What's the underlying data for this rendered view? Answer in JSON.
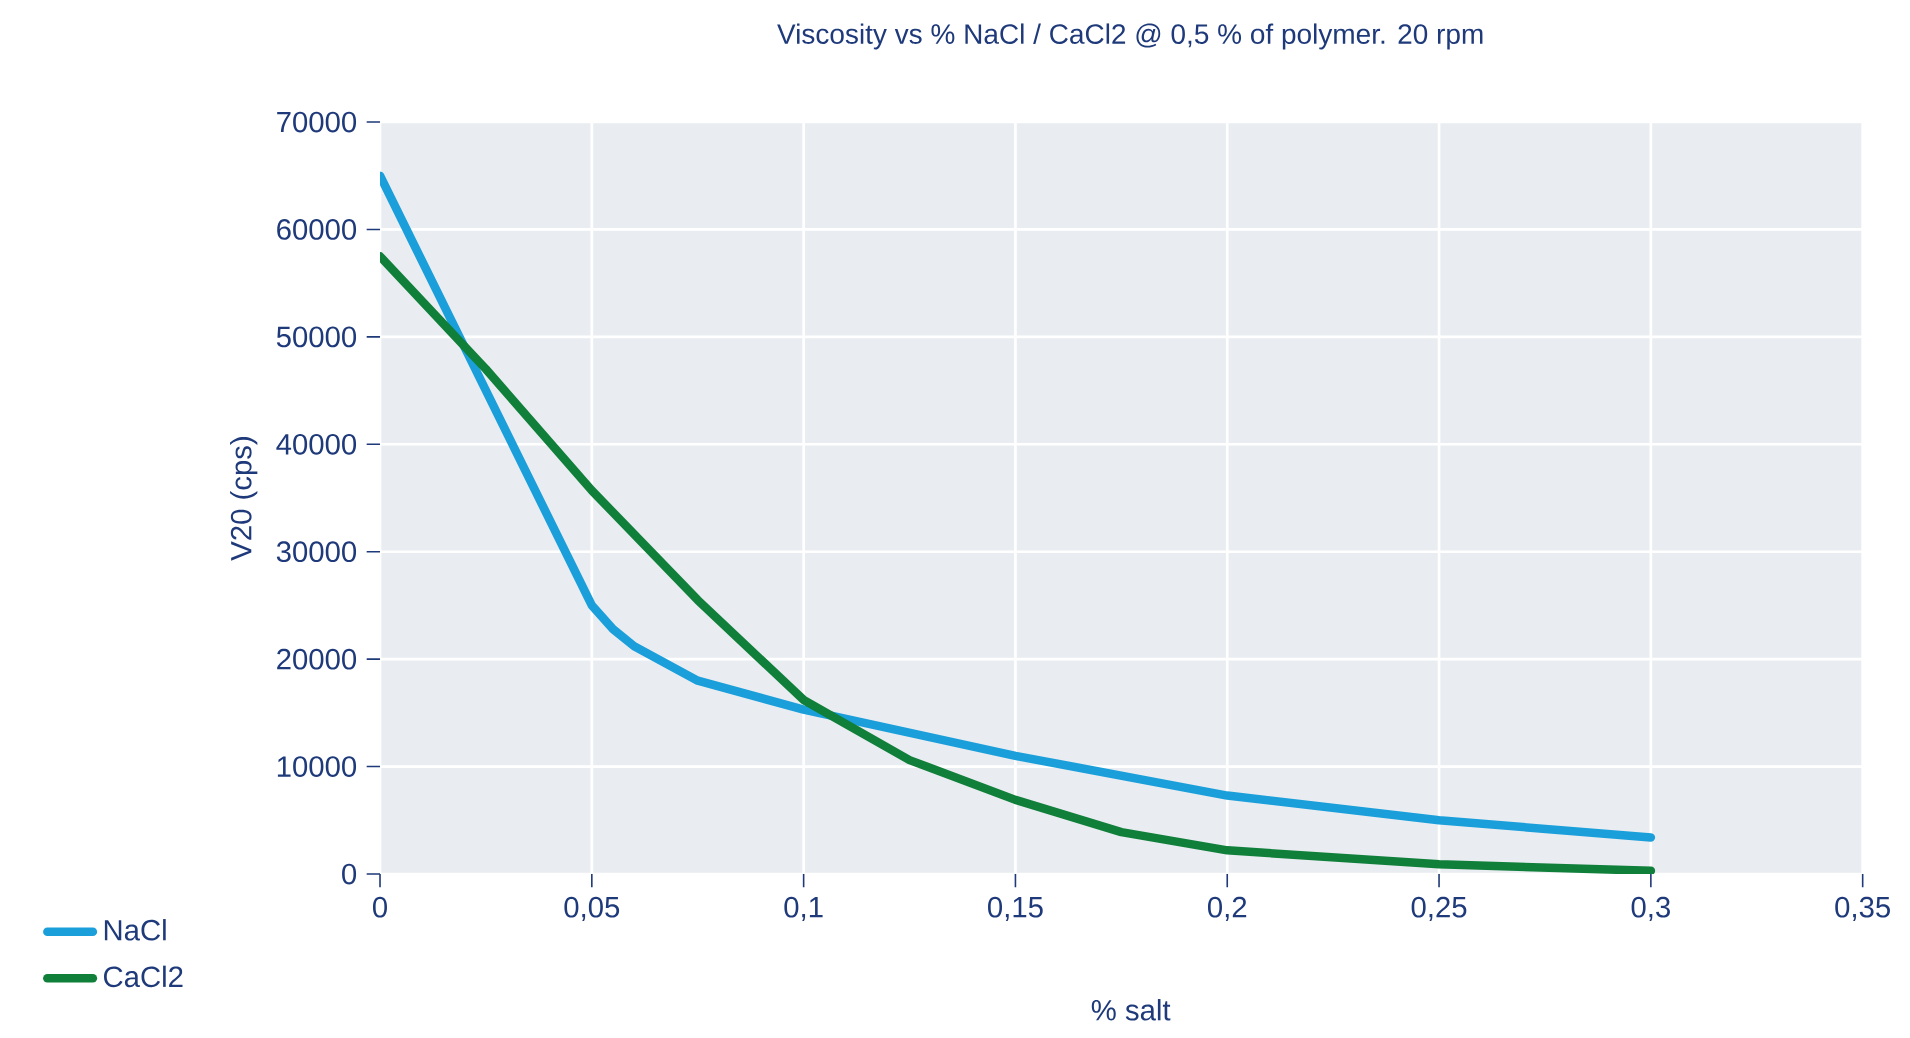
{
  "chart_data": {
    "type": "line",
    "title": "Viscosity vs % NaCl / CaCl2 @ 0,5 % of polymer. 20 rpm",
    "xlabel": "% salt",
    "ylabel": "V20 (cps)",
    "series": [
      {
        "name": "NaCl",
        "color": "#1a9fdb",
        "x": [
          0,
          0.05,
          0.055,
          0.06,
          0.075,
          0.1,
          0.15,
          0.2,
          0.25,
          0.3
        ],
        "values": [
          65000,
          25000,
          22800,
          21200,
          18000,
          15300,
          11000,
          7300,
          5000,
          3400
        ]
      },
      {
        "name": "CaCl2",
        "color": "#0f7f3a",
        "x": [
          0,
          0.025,
          0.05,
          0.075,
          0.1,
          0.125,
          0.15,
          0.175,
          0.2,
          0.25,
          0.3
        ],
        "values": [
          57500,
          47000,
          35700,
          25500,
          16200,
          10600,
          6900,
          3900,
          2200,
          900,
          300
        ]
      }
    ],
    "xlim": [
      0,
      0.35
    ],
    "ylim": [
      0,
      70000
    ],
    "xticks": [
      0,
      {
        "value": 0.05,
        "label": "0,05"
      },
      {
        "value": 0.1,
        "label": "0,1"
      },
      {
        "value": 0.15,
        "label": "0,15"
      },
      {
        "value": 0.2,
        "label": "0,2"
      },
      {
        "value": 0.25,
        "label": "0,25"
      },
      {
        "value": 0.3,
        "label": "0,3"
      },
      {
        "value": 0.35,
        "label": "0,35"
      }
    ],
    "yticks": [
      0,
      10000,
      20000,
      30000,
      40000,
      50000,
      60000,
      70000
    ],
    "grid": true,
    "legend": "bottom left"
  }
}
